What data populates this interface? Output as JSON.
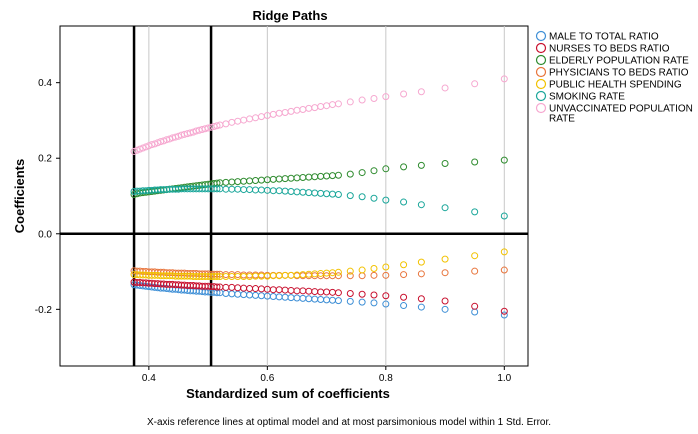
{
  "chart_data": {
    "type": "scatter",
    "title": "Ridge Paths",
    "xlabel": "Standardized sum of coefficients",
    "ylabel": "Coefficients",
    "xlim": [
      0.25,
      1.04
    ],
    "ylim": [
      -0.35,
      0.55
    ],
    "xticks": [
      0.4,
      0.6,
      0.8,
      1.0
    ],
    "xtick_labels": [
      "0.4",
      "0.6",
      "0.8",
      "1.0"
    ],
    "yticks": [
      -0.2,
      0.0,
      0.2,
      0.4
    ],
    "ytick_labels": [
      "-0.2",
      "0.0",
      "0.2",
      "0.4"
    ],
    "grid": "vertical",
    "reference_lines_x": [
      0.375,
      0.505
    ],
    "reference_line_y": 0.0,
    "legend_position": "right",
    "x": [
      0.375,
      0.38,
      0.385,
      0.39,
      0.395,
      0.4,
      0.405,
      0.41,
      0.415,
      0.42,
      0.425,
      0.43,
      0.435,
      0.44,
      0.445,
      0.45,
      0.455,
      0.46,
      0.465,
      0.47,
      0.475,
      0.48,
      0.485,
      0.49,
      0.495,
      0.5,
      0.505,
      0.51,
      0.515,
      0.52,
      0.53,
      0.54,
      0.55,
      0.56,
      0.57,
      0.58,
      0.59,
      0.6,
      0.61,
      0.62,
      0.63,
      0.64,
      0.65,
      0.66,
      0.67,
      0.68,
      0.69,
      0.7,
      0.71,
      0.72,
      0.74,
      0.76,
      0.78,
      0.8,
      0.83,
      0.86,
      0.9,
      0.95,
      1.0
    ],
    "series": [
      {
        "name": "MALE TO TOTAL RATIO",
        "color": "#3e8fd6",
        "values": [
          -0.135,
          -0.136,
          -0.137,
          -0.138,
          -0.139,
          -0.14,
          -0.141,
          -0.142,
          -0.143,
          -0.144,
          -0.144,
          -0.145,
          -0.146,
          -0.147,
          -0.147,
          -0.148,
          -0.149,
          -0.149,
          -0.15,
          -0.151,
          -0.151,
          -0.152,
          -0.152,
          -0.153,
          -0.154,
          -0.154,
          -0.155,
          -0.155,
          -0.156,
          -0.156,
          -0.158,
          -0.159,
          -0.16,
          -0.161,
          -0.162,
          -0.163,
          -0.164,
          -0.165,
          -0.166,
          -0.167,
          -0.168,
          -0.169,
          -0.17,
          -0.171,
          -0.172,
          -0.173,
          -0.174,
          -0.175,
          -0.176,
          -0.177,
          -0.179,
          -0.181,
          -0.183,
          -0.186,
          -0.19,
          -0.194,
          -0.2,
          -0.207,
          -0.215
        ]
      },
      {
        "name": "NURSES TO BEDS RATIO",
        "color": "#c8102e",
        "values": [
          -0.128,
          -0.129,
          -0.129,
          -0.13,
          -0.13,
          -0.131,
          -0.131,
          -0.132,
          -0.132,
          -0.133,
          -0.133,
          -0.134,
          -0.134,
          -0.134,
          -0.135,
          -0.135,
          -0.136,
          -0.136,
          -0.137,
          -0.137,
          -0.137,
          -0.138,
          -0.138,
          -0.139,
          -0.139,
          -0.139,
          -0.14,
          -0.14,
          -0.141,
          -0.141,
          -0.142,
          -0.142,
          -0.143,
          -0.144,
          -0.145,
          -0.145,
          -0.146,
          -0.147,
          -0.148,
          -0.148,
          -0.149,
          -0.15,
          -0.151,
          -0.151,
          -0.152,
          -0.153,
          -0.154,
          -0.154,
          -0.155,
          -0.156,
          -0.158,
          -0.16,
          -0.162,
          -0.164,
          -0.168,
          -0.172,
          -0.178,
          -0.192,
          -0.205
        ]
      },
      {
        "name": "ELDERLY POPULATION RATE",
        "color": "#2e8b2e",
        "values": [
          0.104,
          0.106,
          0.108,
          0.109,
          0.11,
          0.111,
          0.112,
          0.113,
          0.114,
          0.115,
          0.116,
          0.117,
          0.118,
          0.119,
          0.12,
          0.121,
          0.122,
          0.123,
          0.124,
          0.125,
          0.126,
          0.127,
          0.128,
          0.129,
          0.13,
          0.131,
          0.132,
          0.133,
          0.134,
          0.135,
          0.136,
          0.137,
          0.138,
          0.139,
          0.14,
          0.141,
          0.142,
          0.143,
          0.144,
          0.145,
          0.146,
          0.147,
          0.148,
          0.149,
          0.15,
          0.151,
          0.152,
          0.153,
          0.154,
          0.155,
          0.158,
          0.162,
          0.167,
          0.172,
          0.177,
          0.181,
          0.186,
          0.19,
          0.195
        ]
      },
      {
        "name": "PHYSICIANS TO BEDS RATIO",
        "color": "#e8743b",
        "values": [
          -0.098,
          -0.099,
          -0.099,
          -0.1,
          -0.1,
          -0.101,
          -0.101,
          -0.101,
          -0.102,
          -0.102,
          -0.102,
          -0.103,
          -0.103,
          -0.103,
          -0.104,
          -0.104,
          -0.104,
          -0.104,
          -0.105,
          -0.105,
          -0.105,
          -0.105,
          -0.106,
          -0.106,
          -0.106,
          -0.106,
          -0.107,
          -0.107,
          -0.107,
          -0.107,
          -0.108,
          -0.108,
          -0.108,
          -0.109,
          -0.109,
          -0.109,
          -0.109,
          -0.11,
          -0.11,
          -0.11,
          -0.11,
          -0.11,
          -0.111,
          -0.111,
          -0.111,
          -0.111,
          -0.111,
          -0.111,
          -0.111,
          -0.111,
          -0.111,
          -0.111,
          -0.11,
          -0.11,
          -0.108,
          -0.106,
          -0.103,
          -0.099,
          -0.096
        ]
      },
      {
        "name": "PUBLIC HEALTH SPENDING",
        "color": "#f2c200",
        "values": [
          -0.108,
          -0.108,
          -0.109,
          -0.109,
          -0.109,
          -0.11,
          -0.11,
          -0.11,
          -0.11,
          -0.111,
          -0.111,
          -0.111,
          -0.111,
          -0.111,
          -0.112,
          -0.112,
          -0.112,
          -0.112,
          -0.112,
          -0.112,
          -0.113,
          -0.113,
          -0.113,
          -0.113,
          -0.113,
          -0.113,
          -0.113,
          -0.113,
          -0.113,
          -0.113,
          -0.113,
          -0.113,
          -0.113,
          -0.113,
          -0.113,
          -0.112,
          -0.112,
          -0.112,
          -0.111,
          -0.111,
          -0.11,
          -0.11,
          -0.109,
          -0.108,
          -0.107,
          -0.106,
          -0.105,
          -0.104,
          -0.103,
          -0.102,
          -0.099,
          -0.096,
          -0.092,
          -0.088,
          -0.082,
          -0.075,
          -0.067,
          -0.058,
          -0.048
        ]
      },
      {
        "name": "SMOKING RATE",
        "color": "#1aa69a",
        "values": [
          0.112,
          0.113,
          0.113,
          0.114,
          0.114,
          0.115,
          0.115,
          0.116,
          0.116,
          0.117,
          0.117,
          0.117,
          0.118,
          0.118,
          0.118,
          0.118,
          0.119,
          0.119,
          0.119,
          0.119,
          0.119,
          0.119,
          0.119,
          0.119,
          0.119,
          0.119,
          0.119,
          0.119,
          0.119,
          0.119,
          0.118,
          0.118,
          0.118,
          0.117,
          0.117,
          0.116,
          0.116,
          0.115,
          0.114,
          0.114,
          0.113,
          0.112,
          0.111,
          0.11,
          0.109,
          0.108,
          0.107,
          0.106,
          0.105,
          0.104,
          0.101,
          0.098,
          0.094,
          0.089,
          0.084,
          0.077,
          0.069,
          0.058,
          0.047
        ]
      },
      {
        "name": "UNVACCINATED POPULATION RATE",
        "color": "#f6a8d0",
        "values": [
          0.218,
          0.221,
          0.224,
          0.227,
          0.23,
          0.233,
          0.236,
          0.238,
          0.241,
          0.244,
          0.246,
          0.249,
          0.251,
          0.254,
          0.256,
          0.258,
          0.261,
          0.263,
          0.265,
          0.267,
          0.269,
          0.272,
          0.274,
          0.276,
          0.278,
          0.28,
          0.282,
          0.284,
          0.286,
          0.288,
          0.291,
          0.295,
          0.298,
          0.301,
          0.304,
          0.307,
          0.31,
          0.313,
          0.316,
          0.319,
          0.321,
          0.324,
          0.327,
          0.329,
          0.332,
          0.334,
          0.337,
          0.339,
          0.342,
          0.344,
          0.349,
          0.354,
          0.358,
          0.363,
          0.37,
          0.376,
          0.386,
          0.397,
          0.41
        ]
      }
    ],
    "footnote": "X-axis reference lines at optimal model and at most parsimonious model within 1 Std. Error."
  }
}
